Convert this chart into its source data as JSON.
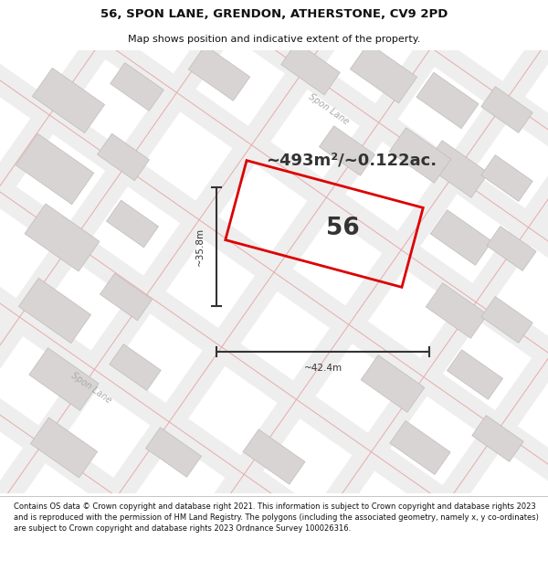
{
  "title_line1": "56, SPON LANE, GRENDON, ATHERSTONE, CV9 2PD",
  "title_line2": "Map shows position and indicative extent of the property.",
  "area_text": "~493m²/~0.122ac.",
  "label_56": "56",
  "dim_height": "~35.8m",
  "dim_width": "~42.4m",
  "road_label": "Spon Lane",
  "footer_text": "Contains OS data © Crown copyright and database right 2021. This information is subject to Crown copyright and database rights 2023 and is reproduced with the permission of HM Land Registry. The polygons (including the associated geometry, namely x, y co-ordinates) are subject to Crown copyright and database rights 2023 Ordnance Survey 100026316.",
  "map_bg": "#f2eeee",
  "plot_color": "#dd0000",
  "dim_color": "#333333",
  "road_label_color": "#aaaaaa",
  "title_color": "#111111",
  "footer_color": "#111111",
  "building_fill": "#d8d4d4",
  "building_edge": "#c0bbbb",
  "road_line_color": "#e8aaaa",
  "road_band_color": "#eeeeee"
}
